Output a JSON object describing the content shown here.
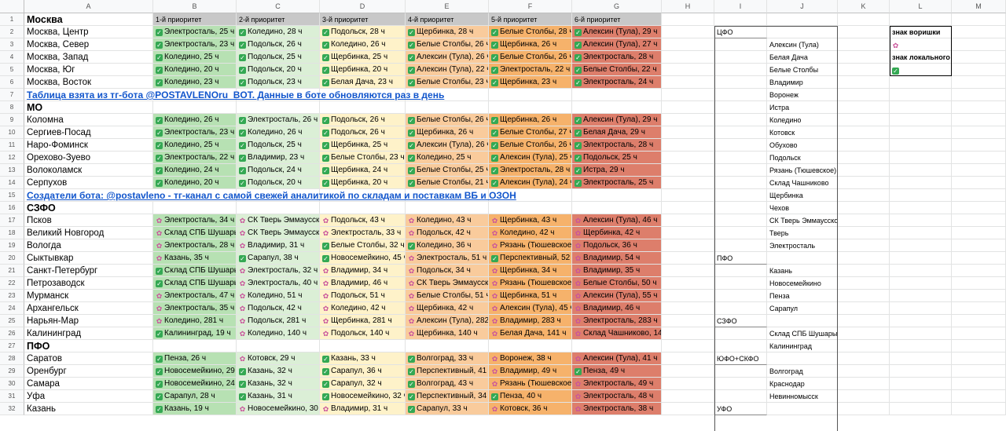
{
  "columns": [
    "A",
    "B",
    "C",
    "D",
    "E",
    "F",
    "G",
    "H",
    "I",
    "J",
    "K",
    "L",
    "M"
  ],
  "colors": {
    "p1": "#b7e1b3",
    "p2": "#dbefd6",
    "p3": "#fef2c9",
    "p4": "#f9cb9c",
    "p5": "#f6b26b",
    "p6": "#dd7e6b",
    "header": "#c8c8c8",
    "link": "#1155cc"
  },
  "rows": [
    {
      "num": "1",
      "type": "header",
      "name": "Москва",
      "cells": [
        "1-й приоритет",
        "2-й приоритет",
        "3-й приоритет",
        "4-й приоритет",
        "5-й приоритет",
        "6-й приоритет"
      ]
    },
    {
      "num": "2",
      "type": "data",
      "name": "Москва, Центр",
      "cells": [
        [
          "local",
          "Электросталь, 25 ч"
        ],
        [
          "local",
          "Коледино, 28 ч"
        ],
        [
          "local",
          "Подольск, 28 ч"
        ],
        [
          "local",
          "Щербинка, 28 ч"
        ],
        [
          "local",
          "Белые Столбы, 28 ч"
        ],
        [
          "local",
          "Алексин (Тула), 29 ч"
        ]
      ]
    },
    {
      "num": "3",
      "type": "data",
      "name": "Москва, Север",
      "cells": [
        [
          "local",
          "Электросталь, 23 ч"
        ],
        [
          "local",
          "Подольск, 26 ч"
        ],
        [
          "local",
          "Коледино, 26 ч"
        ],
        [
          "local",
          "Белые Столбы, 26 ч"
        ],
        [
          "local",
          "Щербинка, 26 ч"
        ],
        [
          "local",
          "Алексин (Тула), 27 ч"
        ]
      ]
    },
    {
      "num": "4",
      "type": "data",
      "name": "Москва, Запад",
      "cells": [
        [
          "local",
          "Коледино, 25 ч"
        ],
        [
          "local",
          "Подольск, 25 ч"
        ],
        [
          "local",
          "Щербинка, 25 ч"
        ],
        [
          "local",
          "Алексин (Тула), 26 ч"
        ],
        [
          "local",
          "Белые Столбы, 26 ч"
        ],
        [
          "local",
          "Электросталь, 28 ч"
        ]
      ]
    },
    {
      "num": "5",
      "type": "data",
      "name": "Москва, Юг",
      "cells": [
        [
          "local",
          "Коледино, 20 ч"
        ],
        [
          "local",
          "Подольск, 20 ч"
        ],
        [
          "local",
          "Щербинка, 20 ч"
        ],
        [
          "local",
          "Алексин (Тула), 22 ч"
        ],
        [
          "local",
          "Электросталь, 22 ч"
        ],
        [
          "local",
          "Белые Столбы, 22 ч"
        ]
      ]
    },
    {
      "num": "6",
      "type": "data",
      "name": "Москва, Восток",
      "cells": [
        [
          "local",
          "Коледино, 23 ч"
        ],
        [
          "local",
          "Подольск, 23 ч"
        ],
        [
          "local",
          "Белая Дача, 23 ч"
        ],
        [
          "local",
          "Белые Столбы, 23 ч"
        ],
        [
          "local",
          "Щербинка, 23 ч"
        ],
        [
          "local",
          "Электросталь, 24 ч"
        ]
      ]
    },
    {
      "num": "7",
      "type": "link",
      "text": "Таблица взята из тг-бота @POSTAVLENOru_BOT. Данные в боте обновляются раз в день"
    },
    {
      "num": "8",
      "type": "title",
      "name": "МО"
    },
    {
      "num": "9",
      "type": "data",
      "name": "Коломна",
      "cells": [
        [
          "local",
          "Коледино, 26 ч"
        ],
        [
          "local",
          "Электросталь, 26 ч"
        ],
        [
          "local",
          "Подольск, 26 ч"
        ],
        [
          "local",
          "Белые Столбы, 26 ч"
        ],
        [
          "local",
          "Щербинка, 26 ч"
        ],
        [
          "local",
          "Алексин (Тула), 29 ч"
        ]
      ]
    },
    {
      "num": "10",
      "type": "data",
      "name": "Сергиев-Посад",
      "cells": [
        [
          "local",
          "Электросталь, 23 ч"
        ],
        [
          "local",
          "Коледино, 26 ч"
        ],
        [
          "local",
          "Подольск, 26 ч"
        ],
        [
          "local",
          "Щербинка, 26 ч"
        ],
        [
          "local",
          "Белые Столбы, 27 ч"
        ],
        [
          "local",
          "Белая Дача, 29 ч"
        ]
      ]
    },
    {
      "num": "11",
      "type": "data",
      "name": "Наро-Фоминск",
      "cells": [
        [
          "local",
          "Коледино, 25 ч"
        ],
        [
          "local",
          "Подольск, 25 ч"
        ],
        [
          "local",
          "Щербинка, 25 ч"
        ],
        [
          "local",
          "Алексин (Тула), 26 ч"
        ],
        [
          "local",
          "Белые Столбы, 26 ч"
        ],
        [
          "local",
          "Электросталь, 28 ч"
        ]
      ]
    },
    {
      "num": "12",
      "type": "data",
      "name": "Орехово-Зуево",
      "cells": [
        [
          "local",
          "Электросталь, 22 ч"
        ],
        [
          "local",
          "Владимир, 23 ч"
        ],
        [
          "local",
          "Белые Столбы, 23 ч"
        ],
        [
          "local",
          "Коледино, 25 ч"
        ],
        [
          "local",
          "Алексин (Тула), 25 ч"
        ],
        [
          "local",
          "Подольск, 25 ч"
        ]
      ]
    },
    {
      "num": "13",
      "type": "data",
      "name": "Волоколамск",
      "cells": [
        [
          "local",
          "Коледино, 24 ч"
        ],
        [
          "local",
          "Подольск, 24 ч"
        ],
        [
          "local",
          "Щербинка, 24 ч"
        ],
        [
          "local",
          "Белые Столбы, 25 ч"
        ],
        [
          "local",
          "Электросталь, 28 ч"
        ],
        [
          "local",
          "Истра, 29 ч"
        ]
      ]
    },
    {
      "num": "14",
      "type": "data",
      "name": "Серпухов",
      "cells": [
        [
          "local",
          "Коледино, 20 ч"
        ],
        [
          "local",
          "Подольск, 20 ч"
        ],
        [
          "local",
          "Щербинка, 20 ч"
        ],
        [
          "local",
          "Белые Столбы, 21 ч"
        ],
        [
          "local",
          "Алексин (Тула), 24 ч"
        ],
        [
          "local",
          "Электросталь, 25 ч"
        ]
      ]
    },
    {
      "num": "15",
      "type": "link",
      "text": "Создатели бота: @postavleno - тг-канал с самой свежей аналитикой по складам и поставкам ВБ и ОЗОН"
    },
    {
      "num": "16",
      "type": "title",
      "name": "СЗФО"
    },
    {
      "num": "17",
      "type": "data",
      "name": "Псков",
      "cells": [
        [
          "thief",
          "Электросталь, 34 ч"
        ],
        [
          "thief",
          "СК Тверь Эммаусское"
        ],
        [
          "thief",
          "Подольск, 43 ч"
        ],
        [
          "thief",
          "Коледино, 43 ч"
        ],
        [
          "thief",
          "Щербинка, 43 ч"
        ],
        [
          "thief",
          "Алексин (Тула), 46 ч"
        ]
      ]
    },
    {
      "num": "18",
      "type": "data",
      "name": "Великий Новгород",
      "cells": [
        [
          "thief",
          "Склад СПБ Шушары"
        ],
        [
          "thief",
          "СК Тверь Эммаусское"
        ],
        [
          "thief",
          "Электросталь, 33 ч"
        ],
        [
          "thief",
          "Подольск, 42 ч"
        ],
        [
          "thief",
          "Коледино, 42 ч"
        ],
        [
          "thief",
          "Щербинка, 42 ч"
        ]
      ]
    },
    {
      "num": "19",
      "type": "data",
      "name": "Вологда",
      "cells": [
        [
          "thief",
          "Электросталь, 28 ч"
        ],
        [
          "thief",
          "Владимир, 31 ч"
        ],
        [
          "local",
          "Белые Столбы, 32 ч"
        ],
        [
          "local",
          "Коледино, 36 ч"
        ],
        [
          "thief",
          "Рязань (Тюшевское), 3"
        ],
        [
          "thief",
          "Подольск, 36 ч"
        ]
      ]
    },
    {
      "num": "20",
      "type": "data",
      "name": "Сыктывкар",
      "cells": [
        [
          "thief",
          "Казань, 35 ч"
        ],
        [
          "local",
          "Сарапул, 38 ч"
        ],
        [
          "local",
          "Новосемейкино, 45 ч"
        ],
        [
          "thief",
          "Электросталь, 51 ч"
        ],
        [
          "local",
          "Перспективный, 52 ч"
        ],
        [
          "thief",
          "Владимир, 54 ч"
        ]
      ]
    },
    {
      "num": "21",
      "type": "data",
      "name": "Санкт-Петербург",
      "cells": [
        [
          "local",
          "Склад СПБ Шушары М"
        ],
        [
          "thief",
          "Электросталь, 32 ч"
        ],
        [
          "thief",
          "Владимир, 34 ч"
        ],
        [
          "thief",
          "Подольск, 34 ч"
        ],
        [
          "thief",
          "Щербинка, 34 ч"
        ],
        [
          "thief",
          "Владимир, 35 ч"
        ]
      ]
    },
    {
      "num": "22",
      "type": "data",
      "name": "Петрозаводск",
      "cells": [
        [
          "local",
          "Склад СПБ Шушары М"
        ],
        [
          "thief",
          "Электросталь, 40 ч"
        ],
        [
          "thief",
          "Владимир, 46 ч"
        ],
        [
          "thief",
          "СК Тверь Эммаусское"
        ],
        [
          "thief",
          "Рязань (Тюшевское), 4"
        ],
        [
          "thief",
          "Белые Столбы, 50 ч"
        ]
      ]
    },
    {
      "num": "23",
      "type": "data",
      "name": "Мурманск",
      "cells": [
        [
          "thief",
          "Электросталь, 47 ч"
        ],
        [
          "thief",
          "Коледино, 51 ч"
        ],
        [
          "thief",
          "Подольск, 51 ч"
        ],
        [
          "thief",
          "Белые Столбы, 51 ч"
        ],
        [
          "thief",
          "Щербинка, 51 ч"
        ],
        [
          "thief",
          "Алексин (Тула), 55 ч"
        ]
      ]
    },
    {
      "num": "24",
      "type": "data",
      "name": "Архангельск",
      "cells": [
        [
          "thief",
          "Электросталь, 35 ч"
        ],
        [
          "thief",
          "Подольск, 42 ч"
        ],
        [
          "thief",
          "Коледино, 42 ч"
        ],
        [
          "thief",
          "Щербинка, 42 ч"
        ],
        [
          "thief",
          "Алексин (Тула), 45 ч"
        ],
        [
          "thief",
          "Владимир, 46 ч"
        ]
      ]
    },
    {
      "num": "25",
      "type": "data",
      "name": "Нарьян-Мар",
      "cells": [
        [
          "thief",
          "Коледино, 281 ч"
        ],
        [
          "thief",
          "Подольск, 281 ч"
        ],
        [
          "thief",
          "Щербинка, 281 ч"
        ],
        [
          "thief",
          "Алексин (Тула), 282 ч"
        ],
        [
          "thief",
          "Владимир, 283 ч"
        ],
        [
          "thief",
          "Электросталь, 283 ч"
        ]
      ]
    },
    {
      "num": "26",
      "type": "data",
      "name": "Калининград",
      "cells": [
        [
          "local",
          "Калининград, 19 ч"
        ],
        [
          "thief",
          "Коледино, 140 ч"
        ],
        [
          "thief",
          "Подольск, 140 ч"
        ],
        [
          "thief",
          "Щербинка, 140 ч"
        ],
        [
          "thief",
          "Белая Дача, 141 ч"
        ],
        [
          "thief",
          "Склад Чашниково, 143 ч"
        ]
      ]
    },
    {
      "num": "27",
      "type": "title",
      "name": "ПФО"
    },
    {
      "num": "28",
      "type": "data",
      "name": "Саратов",
      "cells": [
        [
          "local",
          "Пенза, 26 ч"
        ],
        [
          "thief",
          "Котовск, 29 ч"
        ],
        [
          "local",
          "Казань, 33 ч"
        ],
        [
          "local",
          "Волгоград, 33 ч"
        ],
        [
          "thief",
          "Воронеж, 38 ч"
        ],
        [
          "thief",
          "Алексин (Тула), 41 ч"
        ]
      ]
    },
    {
      "num": "29",
      "type": "data",
      "name": "Оренбург",
      "cells": [
        [
          "local",
          "Новосемейкино, 29 ч"
        ],
        [
          "local",
          "Казань, 32 ч"
        ],
        [
          "local",
          "Сарапул, 36 ч"
        ],
        [
          "local",
          "Перспективный, 41 ч"
        ],
        [
          "thief",
          "Владимир, 49 ч"
        ],
        [
          "local",
          "Пенза, 49 ч"
        ]
      ]
    },
    {
      "num": "30",
      "type": "data",
      "name": "Самара",
      "cells": [
        [
          "local",
          "Новосемейкино, 24 ч"
        ],
        [
          "local",
          "Казань, 32 ч"
        ],
        [
          "local",
          "Сарапул, 32 ч"
        ],
        [
          "local",
          "Волгоград, 43 ч"
        ],
        [
          "thief",
          "Рязань (Тюшевское),"
        ],
        [
          "thief",
          "Электросталь, 49 ч"
        ]
      ]
    },
    {
      "num": "31",
      "type": "data",
      "name": "Уфа",
      "cells": [
        [
          "local",
          "Сарапул, 28 ч"
        ],
        [
          "local",
          "Казань, 31 ч"
        ],
        [
          "local",
          "Новосемейкино, 32 ч"
        ],
        [
          "local",
          "Перспективный, 34 ч"
        ],
        [
          "local",
          "Пенза, 40 ч"
        ],
        [
          "thief",
          "Электросталь, 48 ч"
        ]
      ]
    },
    {
      "num": "32",
      "type": "data",
      "name": "Казань",
      "cells": [
        [
          "local",
          "Казань, 19 ч"
        ],
        [
          "thief",
          "Новосемейкино, 30 ч"
        ],
        [
          "thief",
          "Владимир, 31 ч"
        ],
        [
          "local",
          "Сарапул, 33 ч"
        ],
        [
          "thief",
          "Котовск, 36 ч"
        ],
        [
          "thief",
          "Электросталь, 38 ч"
        ]
      ]
    }
  ],
  "side_list": [
    {
      "row": "2",
      "i": "ЦФО",
      "j": ""
    },
    {
      "row": "3",
      "i": "",
      "j": "Алексин (Тула)"
    },
    {
      "row": "4",
      "i": "",
      "j": "Белая Дача"
    },
    {
      "row": "5",
      "i": "",
      "j": "Белые Столбы"
    },
    {
      "row": "6",
      "i": "",
      "j": "Владимир"
    },
    {
      "row": "7",
      "i": "",
      "j": "Воронеж"
    },
    {
      "row": "8",
      "i": "",
      "j": "Истра"
    },
    {
      "row": "9",
      "i": "",
      "j": "Коледино"
    },
    {
      "row": "10",
      "i": "",
      "j": "Котовск"
    },
    {
      "row": "11",
      "i": "",
      "j": "Обухово"
    },
    {
      "row": "12",
      "i": "",
      "j": "Подольск"
    },
    {
      "row": "13",
      "i": "",
      "j": "Рязань (Тюшевское)"
    },
    {
      "row": "14",
      "i": "",
      "j": "Склад Чашниково"
    },
    {
      "row": "15",
      "i": "",
      "j": "Щербинка"
    },
    {
      "row": "16",
      "i": "",
      "j": "Чехов"
    },
    {
      "row": "17",
      "i": "",
      "j": "СК Тверь Эммаусское"
    },
    {
      "row": "18",
      "i": "",
      "j": "Тверь"
    },
    {
      "row": "19",
      "i": "",
      "j": "Электросталь"
    },
    {
      "row": "20",
      "i": "ПФО",
      "j": ""
    },
    {
      "row": "21",
      "i": "",
      "j": "Казань"
    },
    {
      "row": "22",
      "i": "",
      "j": "Новосемейкино"
    },
    {
      "row": "23",
      "i": "",
      "j": "Пенза"
    },
    {
      "row": "24",
      "i": "",
      "j": "Сарапул"
    },
    {
      "row": "25",
      "i": "СЗФО",
      "j": ""
    },
    {
      "row": "26",
      "i": "",
      "j": "Склад СПБ Шушары"
    },
    {
      "row": "27",
      "i": "",
      "j": "Калининград"
    },
    {
      "row": "28",
      "i": "ЮФО+СКФО",
      "j": ""
    },
    {
      "row": "29",
      "i": "",
      "j": "Волгоград"
    },
    {
      "row": "30",
      "i": "",
      "j": "Краснодар"
    },
    {
      "row": "31",
      "i": "",
      "j": "Невинномысск"
    },
    {
      "row": "32",
      "i": "УФО",
      "j": ""
    }
  ],
  "legend": {
    "thief_label": "знак воришки",
    "thief_icon": "flower-icon",
    "local_label": "знак локального",
    "local_icon": "checkbox-icon"
  }
}
